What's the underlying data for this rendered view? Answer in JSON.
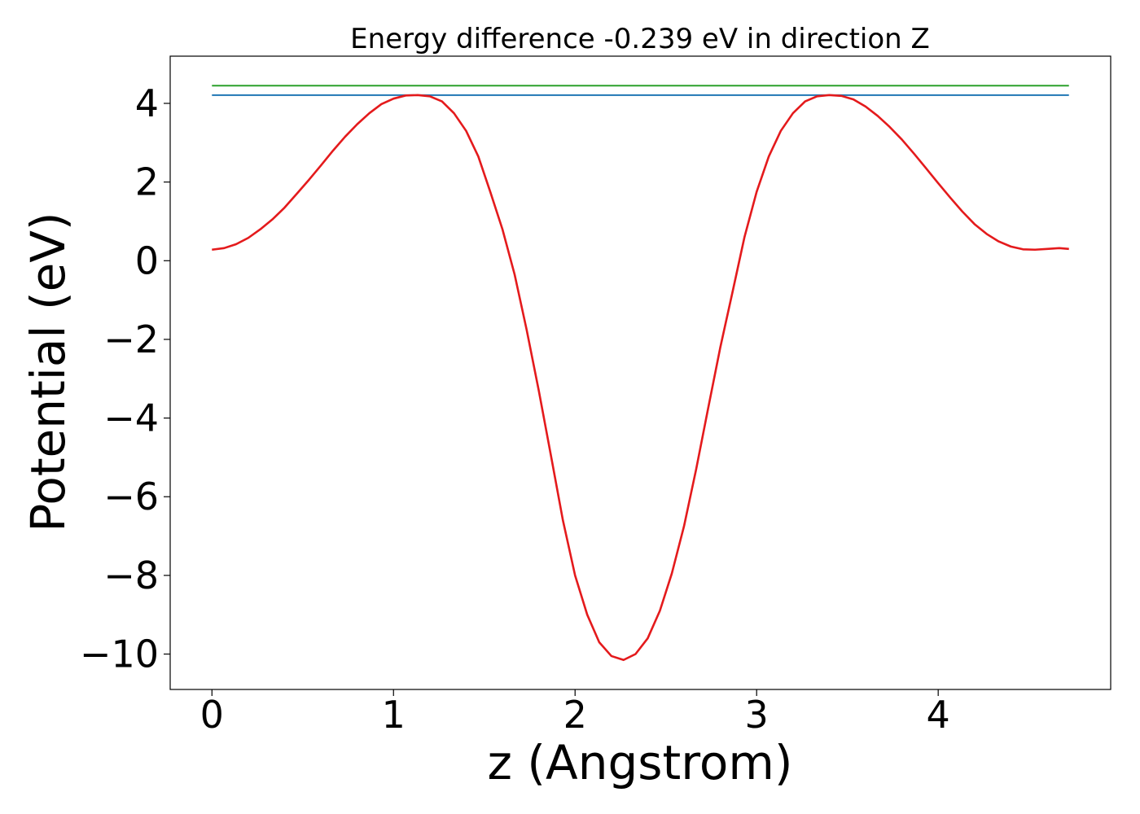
{
  "chart_data": {
    "type": "line",
    "title": "Energy difference -0.239 eV in direction Z",
    "xlabel": "z (Angstrom)",
    "ylabel": "Potential (eV)",
    "xlim": [
      -0.23,
      4.95
    ],
    "ylim": [
      -10.9,
      5.2
    ],
    "xticks": [
      0,
      1,
      2,
      3,
      4
    ],
    "xtick_labels": [
      "0",
      "1",
      "2",
      "3",
      "4"
    ],
    "yticks": [
      4,
      2,
      0,
      -2,
      -4,
      -6,
      -8,
      -10
    ],
    "ytick_labels": [
      "4",
      "2",
      "0",
      "−2",
      "−4",
      "−6",
      "−8",
      "−10"
    ],
    "grid": false,
    "legend": "none",
    "series": [
      {
        "color": "#2ca02c",
        "style": "horizontal",
        "x": [
          0,
          4.72
        ],
        "y": [
          4.45,
          4.45
        ]
      },
      {
        "color": "#1f77b4",
        "style": "horizontal",
        "x": [
          0,
          4.72
        ],
        "y": [
          4.21,
          4.21
        ]
      },
      {
        "color": "#e41a1c",
        "style": "curve",
        "x": [
          0.0,
          0.067,
          0.133,
          0.2,
          0.267,
          0.333,
          0.4,
          0.467,
          0.533,
          0.6,
          0.667,
          0.733,
          0.8,
          0.867,
          0.933,
          1.0,
          1.067,
          1.133,
          1.2,
          1.267,
          1.333,
          1.4,
          1.467,
          1.533,
          1.6,
          1.667,
          1.733,
          1.8,
          1.867,
          1.933,
          2.0,
          2.067,
          2.133,
          2.2,
          2.267,
          2.333,
          2.4,
          2.467,
          2.533,
          2.6,
          2.667,
          2.733,
          2.8,
          2.867,
          2.933,
          3.0,
          3.067,
          3.133,
          3.2,
          3.267,
          3.333,
          3.4,
          3.467,
          3.533,
          3.6,
          3.667,
          3.733,
          3.8,
          3.867,
          3.933,
          4.0,
          4.067,
          4.133,
          4.2,
          4.267,
          4.333,
          4.4,
          4.467,
          4.533,
          4.6,
          4.667,
          4.72
        ],
        "y": [
          0.28,
          0.32,
          0.42,
          0.58,
          0.8,
          1.05,
          1.35,
          1.7,
          2.05,
          2.42,
          2.8,
          3.15,
          3.47,
          3.75,
          3.98,
          4.12,
          4.2,
          4.21,
          4.18,
          4.05,
          3.75,
          3.3,
          2.65,
          1.75,
          0.8,
          -0.35,
          -1.75,
          -3.3,
          -4.95,
          -6.6,
          -8.0,
          -9.0,
          -9.7,
          -10.05,
          -10.15,
          -10.0,
          -9.6,
          -8.9,
          -7.95,
          -6.75,
          -5.3,
          -3.75,
          -2.2,
          -0.8,
          0.6,
          1.75,
          2.65,
          3.3,
          3.75,
          4.05,
          4.18,
          4.21,
          4.19,
          4.1,
          3.92,
          3.68,
          3.4,
          3.08,
          2.72,
          2.35,
          1.97,
          1.6,
          1.25,
          0.93,
          0.68,
          0.49,
          0.36,
          0.29,
          0.28,
          0.3,
          0.32,
          0.3
        ]
      }
    ]
  }
}
